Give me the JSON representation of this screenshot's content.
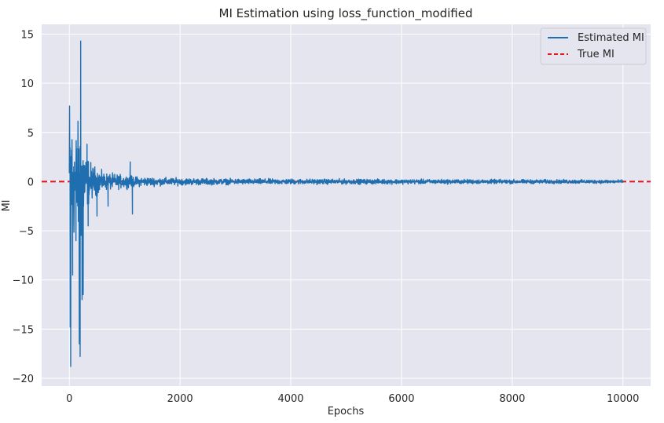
{
  "chart_data": {
    "type": "line",
    "title": "MI Estimation using loss_function_modified",
    "xlabel": "Epochs",
    "ylabel": "MI",
    "xlim": [
      -500,
      10500
    ],
    "ylim": [
      -20.8,
      16.0
    ],
    "x_ticks": [
      0,
      2000,
      4000,
      6000,
      8000,
      10000
    ],
    "y_ticks": [
      -20,
      -15,
      -10,
      -5,
      0,
      5,
      10,
      15
    ],
    "grid": true,
    "legend_position": "top-right",
    "background": "#e5e5ef",
    "series": [
      {
        "name": "Estimated MI",
        "color": "#1f6fb0",
        "style": "solid",
        "x_range": [
          0,
          10000
        ],
        "noise_envelope": {
          "x": [
            0,
            50,
            100,
            150,
            200,
            300,
            400,
            600,
            800,
            1000,
            1200,
            1500,
            2000,
            2500,
            3000,
            4000,
            5000,
            6000,
            7000,
            8000,
            9000,
            10000
          ],
          "amplitude": [
            14,
            9,
            8,
            8,
            10,
            4,
            2.5,
            1.3,
            1.1,
            0.9,
            0.7,
            0.6,
            0.5,
            0.45,
            0.4,
            0.38,
            0.36,
            0.34,
            0.32,
            0.3,
            0.28,
            0.25
          ]
        },
        "spikes": [
          {
            "x": 15,
            "value": -14.8
          },
          {
            "x": 25,
            "value": -18.8
          },
          {
            "x": 40,
            "value": 3.2
          },
          {
            "x": 60,
            "value": -9.5
          },
          {
            "x": 80,
            "value": 1.5
          },
          {
            "x": 120,
            "value": -6.0
          },
          {
            "x": 180,
            "value": -16.5
          },
          {
            "x": 195,
            "value": -17.8
          },
          {
            "x": 205,
            "value": 14.3
          },
          {
            "x": 230,
            "value": -12.0
          },
          {
            "x": 250,
            "value": -11.5
          },
          {
            "x": 320,
            "value": 3.8
          },
          {
            "x": 340,
            "value": -4.5
          },
          {
            "x": 500,
            "value": -3.5
          },
          {
            "x": 700,
            "value": -2.5
          },
          {
            "x": 1100,
            "value": 2.0
          },
          {
            "x": 1140,
            "value": -3.3
          }
        ]
      },
      {
        "name": "True MI",
        "color": "#e8141c",
        "style": "dashed",
        "value": 0
      }
    ]
  }
}
